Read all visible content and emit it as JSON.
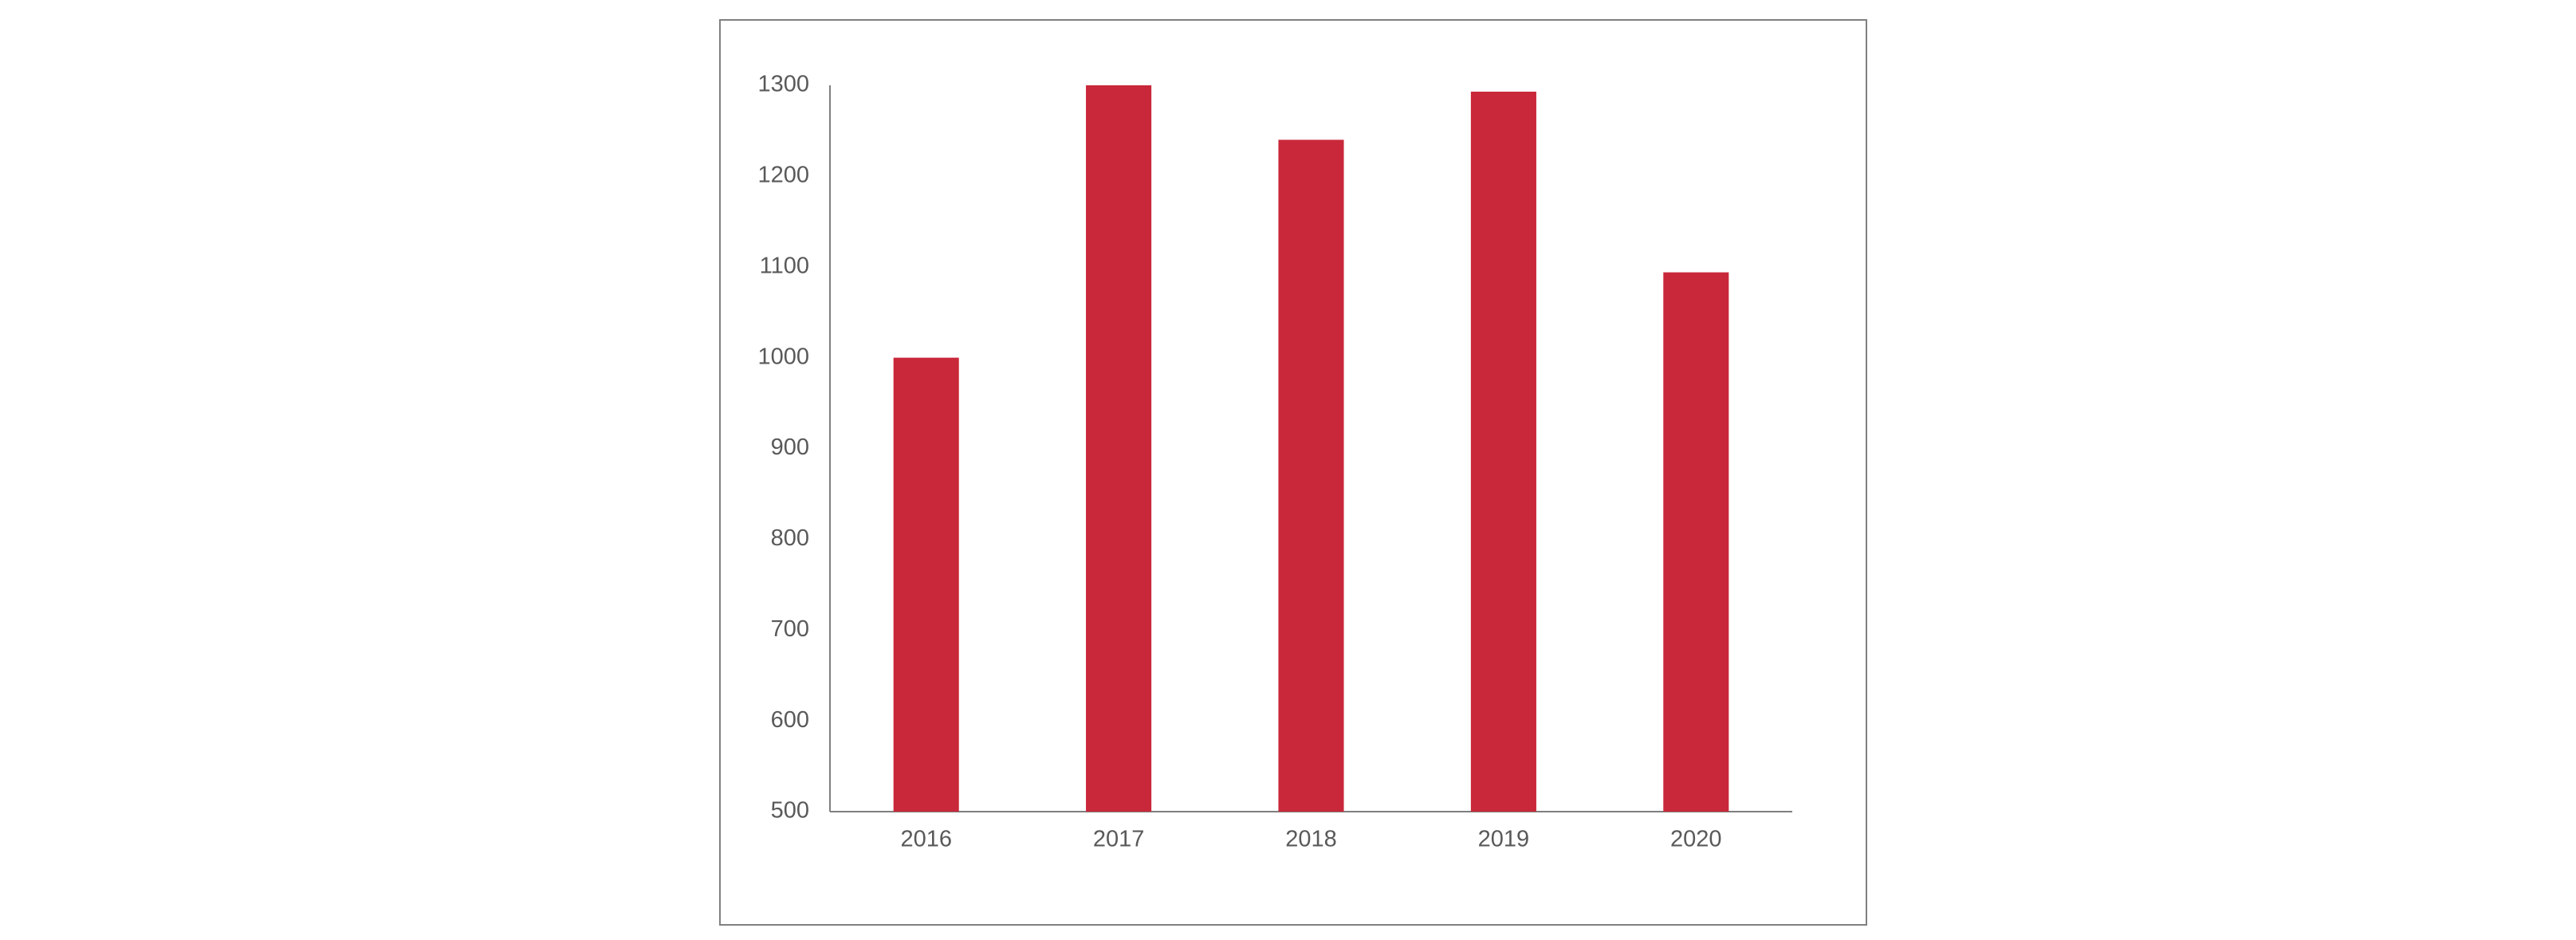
{
  "chart_data": {
    "type": "bar",
    "categories": [
      "2016",
      "2017",
      "2018",
      "2019",
      "2020"
    ],
    "values": [
      1000,
      1300,
      1240,
      1293,
      1094
    ],
    "color": "#c9283a",
    "ylim": [
      500,
      1300
    ],
    "yticks": [
      500,
      600,
      700,
      800,
      900,
      1000,
      1100,
      1200,
      1300
    ],
    "grid": false
  }
}
